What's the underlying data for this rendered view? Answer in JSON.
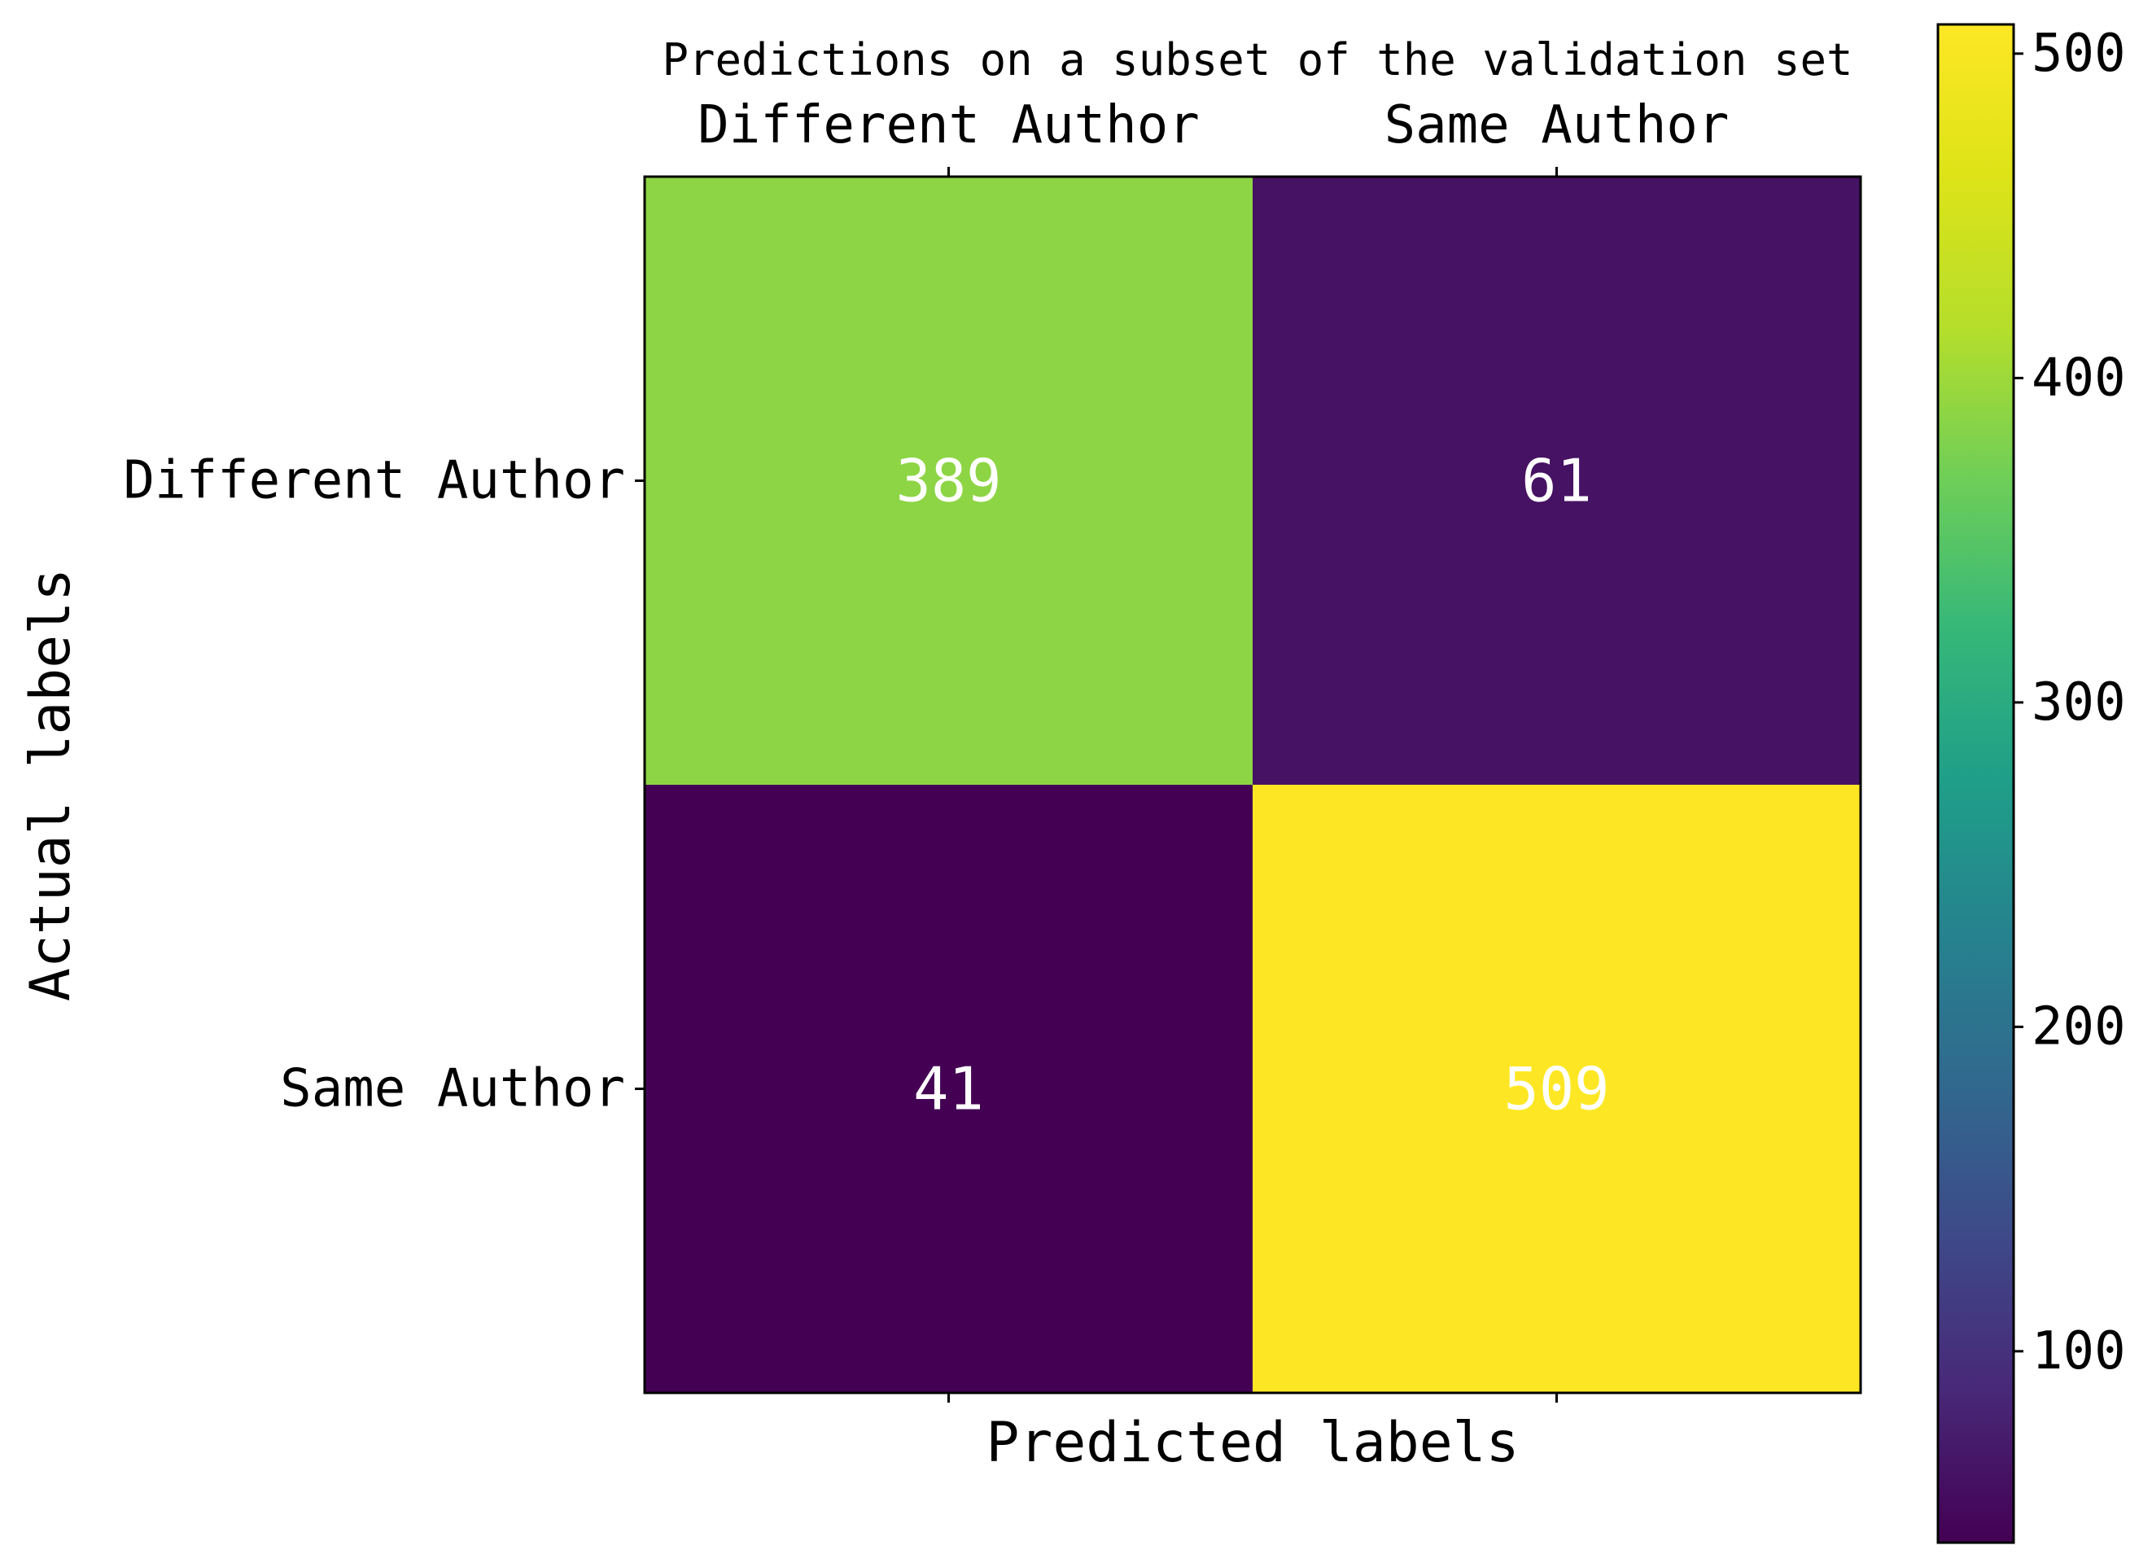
{
  "chart_data": {
    "type": "heatmap",
    "title": "Predictions on a subset of the validation set",
    "xlabel": "Predicted labels",
    "ylabel": "Actual labels",
    "x_categories": [
      "Different Author",
      "Same Author"
    ],
    "y_categories": [
      "Different Author",
      "Same Author"
    ],
    "values": [
      [
        389,
        61
      ],
      [
        41,
        509
      ]
    ],
    "colormap": "viridis",
    "colorbar": {
      "range": [
        41,
        509
      ],
      "ticks": [
        100,
        200,
        300,
        400,
        500
      ],
      "tick_labels": [
        "100",
        "200",
        "300",
        "400",
        "500"
      ]
    },
    "x_tick_position": "top",
    "cell_text_color": "#ffffff"
  }
}
